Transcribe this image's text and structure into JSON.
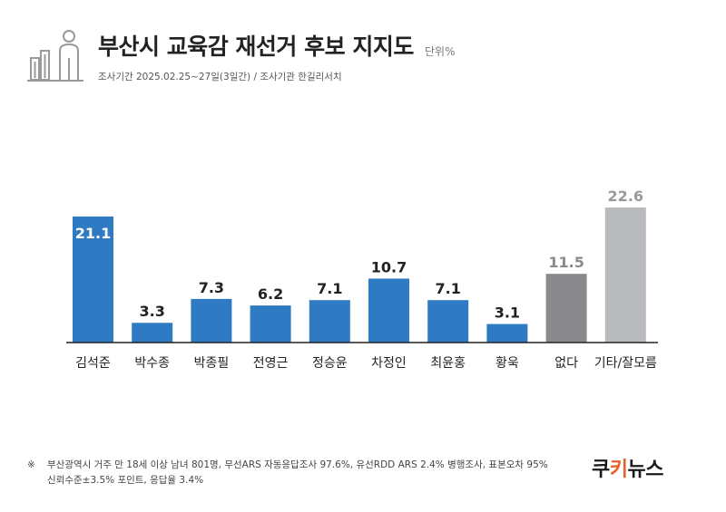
{
  "header": {
    "title": "부산시 교육감 재선거 후보 지지도",
    "unit": "단위%",
    "survey_info": "조사기간 2025.02.25~27일(3일간) / 조사기관  한길리서치"
  },
  "footnote": {
    "mark": "※",
    "line1": "부산광역시 거주 만 18세 이상 남녀 801명, 무선ARS 자동응답조사 97.6%, 유선RDD ARS 2.4% 병행조사, 표본오차 95%",
    "line2": "신뢰수준±3.5% 포인트, 응답율 3.4%"
  },
  "brand": {
    "part1": "쿠",
    "part2": "키",
    "part3": "뉴스",
    "accent_color": "#e8612c"
  },
  "icon": "person-and-buildings-icon",
  "chart_data": {
    "type": "bar",
    "title": "부산시 교육감 재선거 후보 지지도",
    "categories": [
      "김석준",
      "박수종",
      "박종필",
      "전영근",
      "정승윤",
      "차정인",
      "최윤홍",
      "황욱",
      "없다",
      "기타/잘모름"
    ],
    "values": [
      21.1,
      3.3,
      7.3,
      6.2,
      7.1,
      10.7,
      7.1,
      3.1,
      11.5,
      22.6
    ],
    "value_labels": [
      "21.1",
      "3.3",
      "7.3",
      "6.2",
      "7.1",
      "10.7",
      "7.1",
      "3.1",
      "11.5",
      "22.6"
    ],
    "colors": [
      "#2e7bc4",
      "#2e7bc4",
      "#2e7bc4",
      "#2e7bc4",
      "#2e7bc4",
      "#2e7bc4",
      "#2e7bc4",
      "#2e7bc4",
      "#8a8a8e",
      "#b9babd"
    ],
    "label_colors": [
      "#ffffff",
      "#222222",
      "#222222",
      "#222222",
      "#222222",
      "#222222",
      "#222222",
      "#222222",
      "#8a8a8e",
      "#999999"
    ],
    "label_inside": [
      true,
      false,
      false,
      false,
      false,
      false,
      false,
      false,
      false,
      false
    ],
    "ylim": [
      0,
      22.6
    ],
    "grid": false,
    "legend": "none"
  }
}
